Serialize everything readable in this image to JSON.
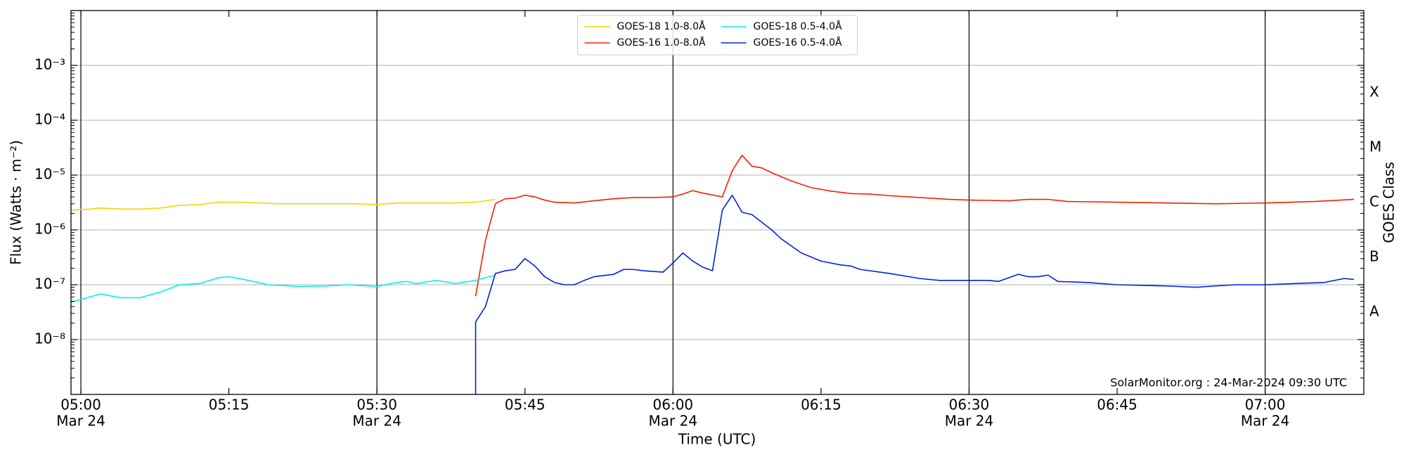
{
  "chart_data": {
    "type": "line",
    "xlabel": "Time (UTC)",
    "ylabel": "Flux (Watts · m⁻²)",
    "y2label": "GOES Class",
    "annotation": "SolarMonitor.org : 24-Mar-2024 09:30 UTC",
    "log_y": true,
    "grid": true,
    "legend": "upper center",
    "xlim": [
      "04:59",
      "07:10"
    ],
    "ylim": [
      1e-09,
      0.01
    ],
    "y2lim": [
      1e-09,
      0.01
    ],
    "xticks": [
      {
        "value": "05:00",
        "label": [
          "05:00",
          "Mar 24"
        ]
      },
      {
        "value": "05:15",
        "label": [
          "05:15"
        ]
      },
      {
        "value": "05:30",
        "label": [
          "05:30",
          "Mar 24"
        ]
      },
      {
        "value": "05:45",
        "label": [
          "05:45"
        ]
      },
      {
        "value": "06:00",
        "label": [
          "06:00",
          "Mar 24"
        ]
      },
      {
        "value": "06:15",
        "label": [
          "06:15"
        ]
      },
      {
        "value": "06:30",
        "label": [
          "06:30",
          "Mar 24"
        ]
      },
      {
        "value": "06:45",
        "label": [
          "06:45"
        ]
      },
      {
        "value": "07:00",
        "label": [
          "07:00",
          "Mar 24"
        ]
      }
    ],
    "vlines": [
      "05:00",
      "05:30",
      "06:00",
      "06:30",
      "07:00"
    ],
    "yticks": [
      {
        "value": 1e-08,
        "label": "10⁻⁸"
      },
      {
        "value": 1e-07,
        "label": "10⁻⁷"
      },
      {
        "value": 1e-06,
        "label": "10⁻⁶"
      },
      {
        "value": 1e-05,
        "label": "10⁻⁵"
      },
      {
        "value": 0.0001,
        "label": "10⁻⁴"
      },
      {
        "value": 0.001,
        "label": "10⁻³"
      }
    ],
    "y2ticks": [
      {
        "value": 3.16e-08,
        "label": "A"
      },
      {
        "value": 3.16e-07,
        "label": "B"
      },
      {
        "value": 3.16e-06,
        "label": "C"
      },
      {
        "value": 3.16e-05,
        "label": "M"
      },
      {
        "value": 0.000316,
        "label": "X"
      }
    ],
    "series": [
      {
        "name": "GOES-18 1.0-8.0Å",
        "color": "#f2d600",
        "x": [
          "04:59",
          "05:01",
          "05:02",
          "05:04",
          "05:06",
          "05:08",
          "05:10",
          "05:12",
          "05:14",
          "05:16",
          "05:20",
          "05:25",
          "05:28",
          "05:30",
          "05:32",
          "05:35",
          "05:38",
          "05:40",
          "05:42"
        ],
        "values": [
          2.3e-06,
          2.4e-06,
          2.5e-06,
          2.4e-06,
          2.4e-06,
          2.5e-06,
          2.8e-06,
          2.9e-06,
          3.2e-06,
          3.2e-06,
          3e-06,
          3e-06,
          3e-06,
          2.9e-06,
          3.1e-06,
          3.1e-06,
          3.1e-06,
          3.2e-06,
          3.6e-06
        ]
      },
      {
        "name": "GOES-16 1.0-8.0Å",
        "color": "#f22000",
        "x": [
          "05:40",
          "05:41",
          "05:42",
          "05:43",
          "05:44",
          "05:45",
          "05:46",
          "05:47",
          "05:48",
          "05:50",
          "05:52",
          "05:54",
          "05:56",
          "05:58",
          "06:00",
          "06:01",
          "06:02",
          "06:03",
          "06:05",
          "06:06",
          "06:07",
          "06:08",
          "06:09",
          "06:10",
          "06:12",
          "06:14",
          "06:16",
          "06:18",
          "06:20",
          "06:22",
          "06:25",
          "06:28",
          "06:30",
          "06:34",
          "06:36",
          "06:38",
          "06:40",
          "06:45",
          "06:50",
          "06:55",
          "07:00",
          "07:05",
          "07:09"
        ],
        "values": [
          6.2e-08,
          6.5e-07,
          3e-06,
          3.7e-06,
          3.8e-06,
          4.3e-06,
          4e-06,
          3.5e-06,
          3.2e-06,
          3.1e-06,
          3.4e-06,
          3.7e-06,
          3.9e-06,
          3.9e-06,
          4e-06,
          4.5e-06,
          5.2e-06,
          4.7e-06,
          4e-06,
          1.2e-05,
          2.3e-05,
          1.45e-05,
          1.35e-05,
          1.1e-05,
          7.8e-06,
          5.9e-06,
          5.1e-06,
          4.6e-06,
          4.5e-06,
          4.2e-06,
          3.9e-06,
          3.6e-06,
          3.5e-06,
          3.4e-06,
          3.6e-06,
          3.6e-06,
          3.3e-06,
          3.2e-06,
          3.1e-06,
          3e-06,
          3.1e-06,
          3.3e-06,
          3.6e-06
        ]
      },
      {
        "name": "GOES-18 0.5-4.0Å",
        "color": "#00f0f0",
        "x": [
          "04:59",
          "05:00",
          "05:02",
          "05:04",
          "05:06",
          "05:08",
          "05:10",
          "05:12",
          "05:14",
          "05:15",
          "05:17",
          "05:19",
          "05:22",
          "05:25",
          "05:27",
          "05:30",
          "05:32",
          "05:33",
          "05:34",
          "05:36",
          "05:38",
          "05:40",
          "05:42"
        ],
        "values": [
          4.8e-08,
          5.4e-08,
          6.8e-08,
          5.8e-08,
          5.8e-08,
          7.3e-08,
          1e-07,
          1.05e-07,
          1.35e-07,
          1.4e-07,
          1.2e-07,
          1e-07,
          9.3e-08,
          9.5e-08,
          1e-07,
          9.3e-08,
          1.1e-07,
          1.15e-07,
          1.05e-07,
          1.2e-07,
          1.05e-07,
          1.2e-07,
          1.5e-07
        ]
      },
      {
        "name": "GOES-16 0.5-4.0Å",
        "color": "#0022dd",
        "x": [
          "05:40",
          "05:40",
          "05:41",
          "05:42",
          "05:43",
          "05:44",
          "05:45",
          "05:46",
          "05:47",
          "05:48",
          "05:49",
          "05:50",
          "05:51",
          "05:52",
          "05:54",
          "05:55",
          "05:56",
          "05:57",
          "05:59",
          "06:00",
          "06:01",
          "06:02",
          "06:03",
          "06:04",
          "06:05",
          "06:06",
          "06:07",
          "06:08",
          "06:10",
          "06:11",
          "06:13",
          "06:15",
          "06:17",
          "06:18",
          "06:19",
          "06:22",
          "06:25",
          "06:27",
          "06:30",
          "06:32",
          "06:33",
          "06:35",
          "06:36",
          "06:37",
          "06:38",
          "06:39",
          "06:42",
          "06:45",
          "06:50",
          "06:53",
          "06:55",
          "06:57",
          "07:00",
          "07:03",
          "07:06",
          "07:08",
          "07:09"
        ],
        "values": [
          1e-09,
          2.1e-08,
          4e-08,
          1.6e-07,
          1.8e-07,
          1.9e-07,
          3e-07,
          2.2e-07,
          1.4e-07,
          1.1e-07,
          1e-07,
          1e-07,
          1.2e-07,
          1.4e-07,
          1.55e-07,
          1.9e-07,
          1.9e-07,
          1.8e-07,
          1.7e-07,
          2.5e-07,
          3.8e-07,
          2.7e-07,
          2.1e-07,
          1.8e-07,
          2.3e-06,
          4.3e-06,
          2.1e-06,
          1.9e-06,
          1e-06,
          6.8e-07,
          3.8e-07,
          2.7e-07,
          2.3e-07,
          2.2e-07,
          1.9e-07,
          1.6e-07,
          1.3e-07,
          1.2e-07,
          1.2e-07,
          1.2e-07,
          1.15e-07,
          1.55e-07,
          1.4e-07,
          1.4e-07,
          1.5e-07,
          1.15e-07,
          1.1e-07,
          1e-07,
          9.5e-08,
          9e-08,
          9.5e-08,
          1e-07,
          1e-07,
          1.05e-07,
          1.1e-07,
          1.3e-07,
          1.25e-07
        ]
      }
    ]
  }
}
